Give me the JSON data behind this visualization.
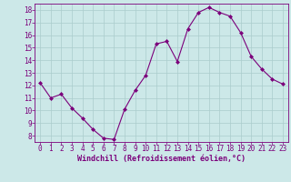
{
  "x": [
    0,
    1,
    2,
    3,
    4,
    5,
    6,
    7,
    8,
    9,
    10,
    11,
    12,
    13,
    14,
    15,
    16,
    17,
    18,
    19,
    20,
    21,
    22,
    23
  ],
  "y": [
    12.2,
    11.0,
    11.3,
    10.2,
    9.4,
    8.5,
    7.8,
    7.7,
    10.1,
    11.6,
    12.8,
    15.3,
    15.5,
    13.9,
    16.5,
    17.8,
    18.2,
    17.8,
    17.5,
    16.2,
    14.3,
    13.3,
    12.5,
    12.1
  ],
  "line_color": "#7b007b",
  "marker": "D",
  "marker_size": 2.0,
  "bg_color": "#cce8e8",
  "grid_color": "#aacccc",
  "xlabel": "Windchill (Refroidissement éolien,°C)",
  "xlabel_color": "#7b007b",
  "tick_color": "#7b007b",
  "label_color": "#7b007b",
  "ylim": [
    7.5,
    18.5
  ],
  "xlim": [
    -0.5,
    23.5
  ],
  "yticks": [
    8,
    9,
    10,
    11,
    12,
    13,
    14,
    15,
    16,
    17,
    18
  ],
  "xticks": [
    0,
    1,
    2,
    3,
    4,
    5,
    6,
    7,
    8,
    9,
    10,
    11,
    12,
    13,
    14,
    15,
    16,
    17,
    18,
    19,
    20,
    21,
    22,
    23
  ],
  "tick_fontsize": 5.5,
  "xlabel_fontsize": 6.0
}
